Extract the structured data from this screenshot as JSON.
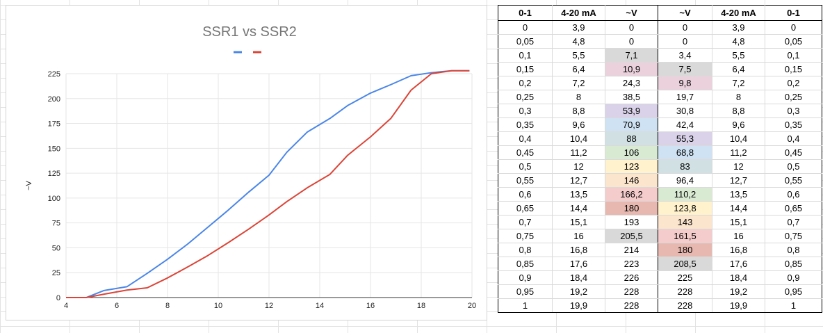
{
  "chart_data": {
    "type": "line",
    "title": "SSR1 vs SSR2",
    "xlabel": "",
    "ylabel": "~V",
    "xlim": [
      4,
      20
    ],
    "ylim": [
      0,
      225
    ],
    "xticks": [
      4,
      6,
      8,
      10,
      12,
      14,
      16,
      18,
      20
    ],
    "yticks": [
      0,
      25,
      50,
      75,
      100,
      125,
      150,
      175,
      200,
      225
    ],
    "grid": true,
    "legend": "top-center",
    "series": [
      {
        "color": "#4a86e8",
        "x": [
          3.9,
          4.8,
          5.5,
          6.4,
          7.2,
          8,
          8.8,
          9.6,
          10.4,
          11.2,
          12,
          12.7,
          13.5,
          14.4,
          15.1,
          16,
          16.8,
          17.6,
          18.4,
          19.2,
          19.9
        ],
        "y": [
          0,
          0,
          7.1,
          10.9,
          24.3,
          38.5,
          53.9,
          70.9,
          88,
          106,
          123,
          146,
          166.2,
          180,
          193,
          205.5,
          214,
          223,
          226,
          228,
          228
        ]
      },
      {
        "color": "#db4437",
        "x": [
          3.9,
          4.8,
          5.5,
          6.4,
          7.2,
          8,
          8.8,
          9.6,
          10.4,
          11.2,
          12,
          12.7,
          13.5,
          14.4,
          15.1,
          16,
          16.8,
          17.6,
          18.4,
          19.2,
          19.9
        ],
        "y": [
          0,
          0,
          3.4,
          7.5,
          9.8,
          19.7,
          30.8,
          42.4,
          55.3,
          68.8,
          83,
          96.4,
          110.2,
          123.8,
          143,
          161.5,
          180,
          208.5,
          225,
          228,
          228
        ]
      }
    ]
  },
  "table": {
    "headers": [
      "0-1",
      "4-20 mA",
      "~V",
      "~V",
      "4-20 mA",
      "0-1"
    ],
    "rows": [
      [
        "0",
        "3,9",
        "0",
        "0",
        "3,9",
        "0"
      ],
      [
        "0,05",
        "4,8",
        "0",
        "0",
        "4,8",
        "0,05"
      ],
      [
        "0,1",
        "5,5",
        "7,1",
        "3,4",
        "5,5",
        "0,1"
      ],
      [
        "0,15",
        "6,4",
        "10,9",
        "7,5",
        "6,4",
        "0,15"
      ],
      [
        "0,2",
        "7,2",
        "24,3",
        "9,8",
        "7,2",
        "0,2"
      ],
      [
        "0,25",
        "8",
        "38,5",
        "19,7",
        "8",
        "0,25"
      ],
      [
        "0,3",
        "8,8",
        "53,9",
        "30,8",
        "8,8",
        "0,3"
      ],
      [
        "0,35",
        "9,6",
        "70,9",
        "42,4",
        "9,6",
        "0,35"
      ],
      [
        "0,4",
        "10,4",
        "88",
        "55,3",
        "10,4",
        "0,4"
      ],
      [
        "0,45",
        "11,2",
        "106",
        "68,8",
        "11,2",
        "0,45"
      ],
      [
        "0,5",
        "12",
        "123",
        "83",
        "12",
        "0,5"
      ],
      [
        "0,55",
        "12,7",
        "146",
        "96,4",
        "12,7",
        "0,55"
      ],
      [
        "0,6",
        "13,5",
        "166,2",
        "110,2",
        "13,5",
        "0,6"
      ],
      [
        "0,65",
        "14,4",
        "180",
        "123,8",
        "14,4",
        "0,65"
      ],
      [
        "0,7",
        "15,1",
        "193",
        "143",
        "15,1",
        "0,7"
      ],
      [
        "0,75",
        "16",
        "205,5",
        "161,5",
        "16",
        "0,75"
      ],
      [
        "0,8",
        "16,8",
        "214",
        "180",
        "16,8",
        "0,8"
      ],
      [
        "0,85",
        "17,6",
        "223",
        "208,5",
        "17,6",
        "0,85"
      ],
      [
        "0,9",
        "18,4",
        "226",
        "225",
        "18,4",
        "0,9"
      ],
      [
        "0,95",
        "19,2",
        "228",
        "228",
        "19,2",
        "0,95"
      ],
      [
        "1",
        "19,9",
        "228",
        "228",
        "19,9",
        "1"
      ]
    ],
    "highlights": {
      "col2": [
        null,
        null,
        "#d9d9d9",
        "#ead1dc",
        null,
        null,
        "#d9d2e9",
        "#cfe2f3",
        "#d0e0e3",
        "#d9ead3",
        "#fff2cc",
        "#fce5cd",
        "#f4cccc",
        "#e6b8af",
        null,
        "#d9d9d9",
        null,
        null,
        null,
        null,
        null
      ],
      "col3": [
        null,
        null,
        null,
        "#d9d9d9",
        "#ead1dc",
        null,
        null,
        null,
        "#d9d2e9",
        "#cfe2f3",
        "#d0e0e3",
        null,
        "#d9ead3",
        "#fff2cc",
        "#fce5cd",
        "#f4cccc",
        "#e6b8af",
        "#d9d9d9",
        null,
        null,
        null
      ]
    }
  }
}
